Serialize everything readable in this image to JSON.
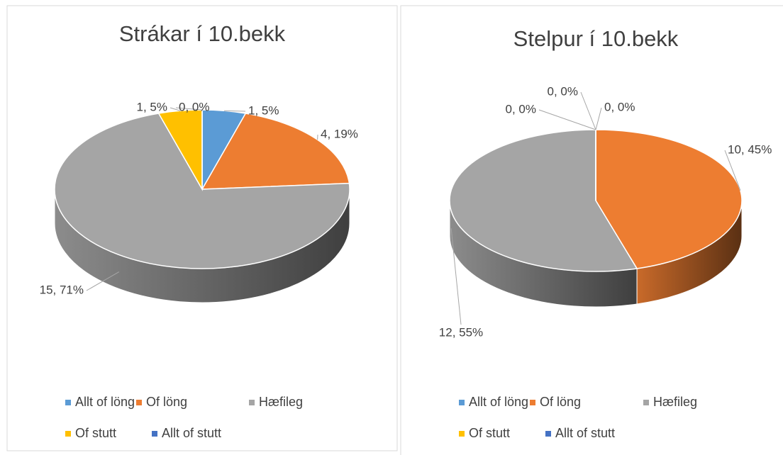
{
  "chart_data": [
    {
      "type": "pie",
      "title": "Strákar í 10.bekk",
      "categories": [
        "Allt of löng",
        "Of löng",
        "Hæfileg",
        "Of stutt",
        "Allt of stutt"
      ],
      "values": [
        1,
        4,
        15,
        1,
        0
      ],
      "value_labels": [
        "1, 5%",
        "4, 19%",
        "15, 71%",
        "1, 5%",
        "0, 0%"
      ],
      "colors": [
        "#5b9bd5",
        "#ed7d31",
        "#a5a5a5",
        "#ffc000",
        "#4472c4"
      ],
      "legend": "bottom"
    },
    {
      "type": "pie",
      "title": "Stelpur í 10.bekk",
      "categories": [
        "Allt of löng",
        "Of löng",
        "Hæfileg",
        "Of stutt",
        "Allt of stutt"
      ],
      "values": [
        0,
        10,
        12,
        0,
        0
      ],
      "value_labels": [
        "0, 0%",
        "10, 45%",
        "12, 55%",
        "0, 0%",
        "0, 0%"
      ],
      "colors": [
        "#5b9bd5",
        "#ed7d31",
        "#a5a5a5",
        "#ffc000",
        "#4472c4"
      ],
      "legend": "bottom"
    }
  ]
}
